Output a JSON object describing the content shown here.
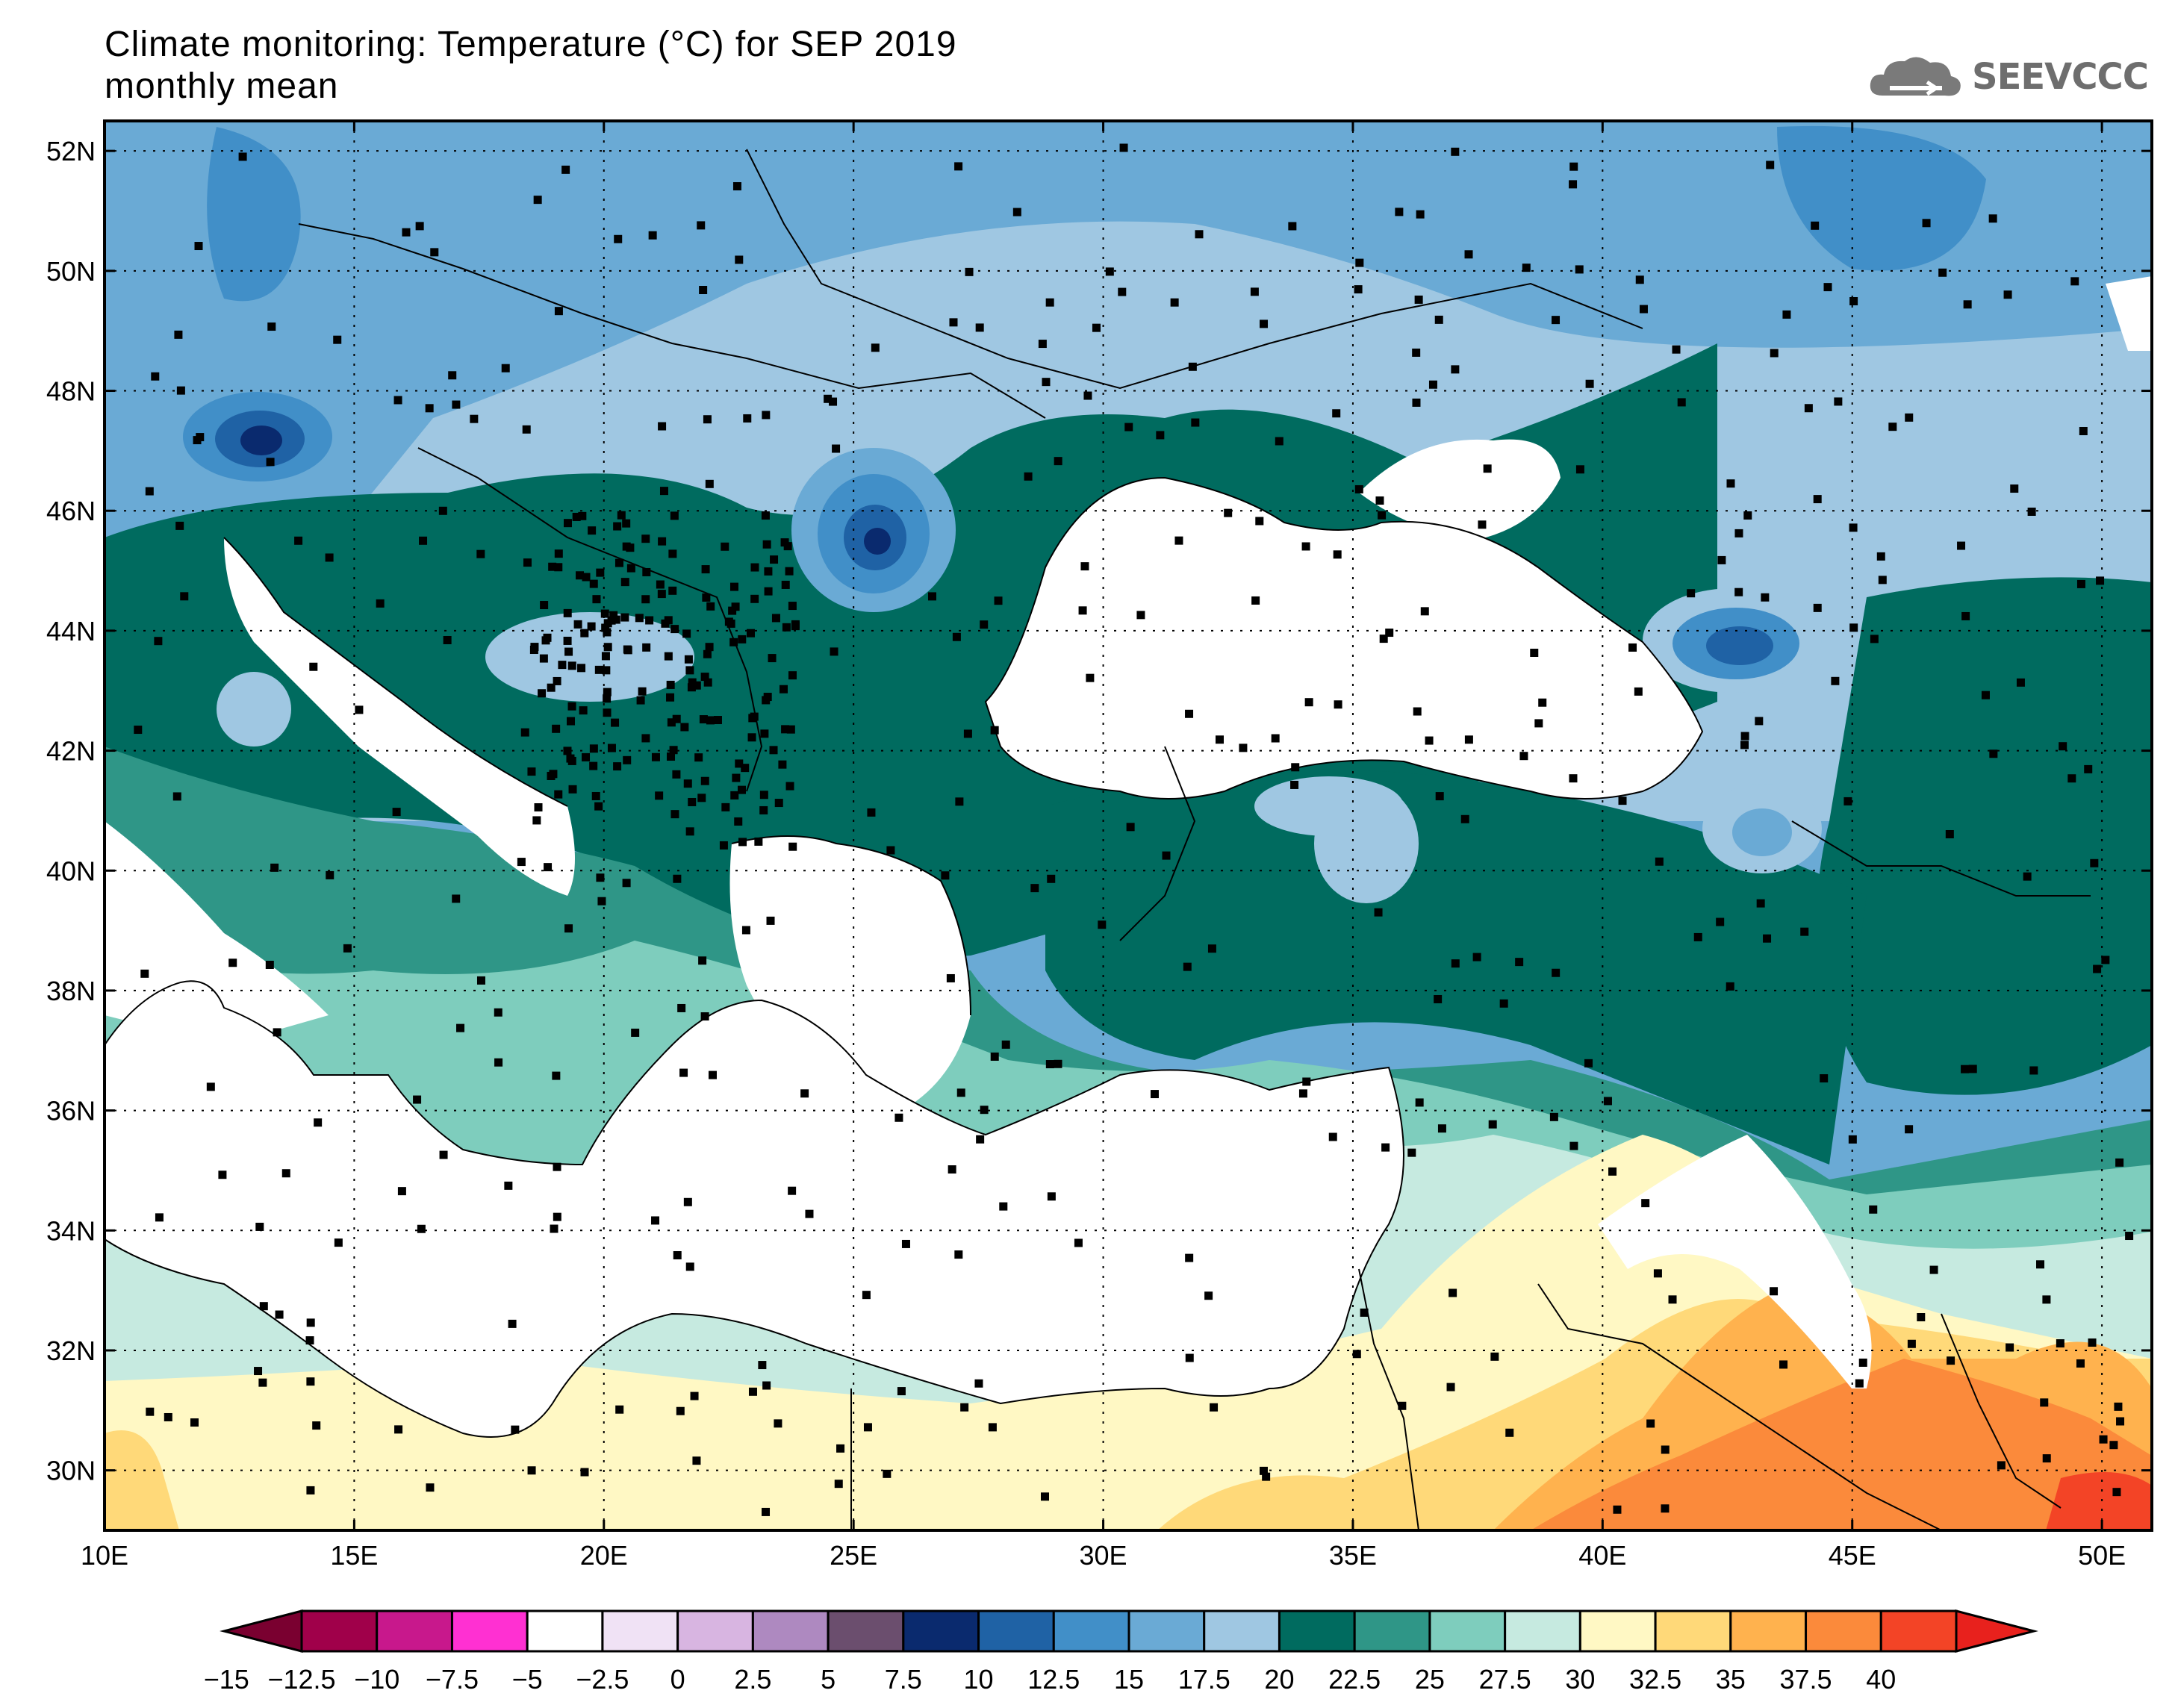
{
  "header": {
    "title_line1": "Climate monitoring: Temperature (°C) for SEP 2019",
    "title_line2": "monthly mean",
    "logo_text": "SEEVCCC",
    "logo_icon": "cloud-icon"
  },
  "map": {
    "lat_range": [
      29,
      52.5
    ],
    "lon_range": [
      10,
      51
    ],
    "x_ticks": [
      "10E",
      "15E",
      "20E",
      "25E",
      "30E",
      "35E",
      "40E",
      "45E",
      "50E"
    ],
    "y_ticks": [
      "52N",
      "50N",
      "48N",
      "46N",
      "44N",
      "42N",
      "40N",
      "38N",
      "36N",
      "34N",
      "32N",
      "30N"
    ],
    "grid": "dotted",
    "stations": "black square markers"
  },
  "colorbar": {
    "labels": [
      "-15",
      "-12.5",
      "-10",
      "-7.5",
      "-5",
      "-2.5",
      "0",
      "2.5",
      "5",
      "7.5",
      "10",
      "12.5",
      "15",
      "17.5",
      "20",
      "22.5",
      "25",
      "27.5",
      "30",
      "32.5",
      "35",
      "37.5",
      "40"
    ],
    "colors": [
      "#a0004a",
      "#c8188c",
      "#ff30d2",
      "#ffffff",
      "#f0e2f5",
      "#d8b5e1",
      "#ae89c0",
      "#6b4e6e",
      "#0a2a6e",
      "#1f62a5",
      "#418fc8",
      "#6aaad5",
      "#9fc7e2",
      "#006b5f",
      "#2f9687",
      "#7ecdbd",
      "#c6eae0",
      "#fff8c4",
      "#ffd979",
      "#ffb24e",
      "#fb8a3b",
      "#f34426"
    ],
    "under_color": "#7a0030",
    "over_color": "#e8211d"
  }
}
